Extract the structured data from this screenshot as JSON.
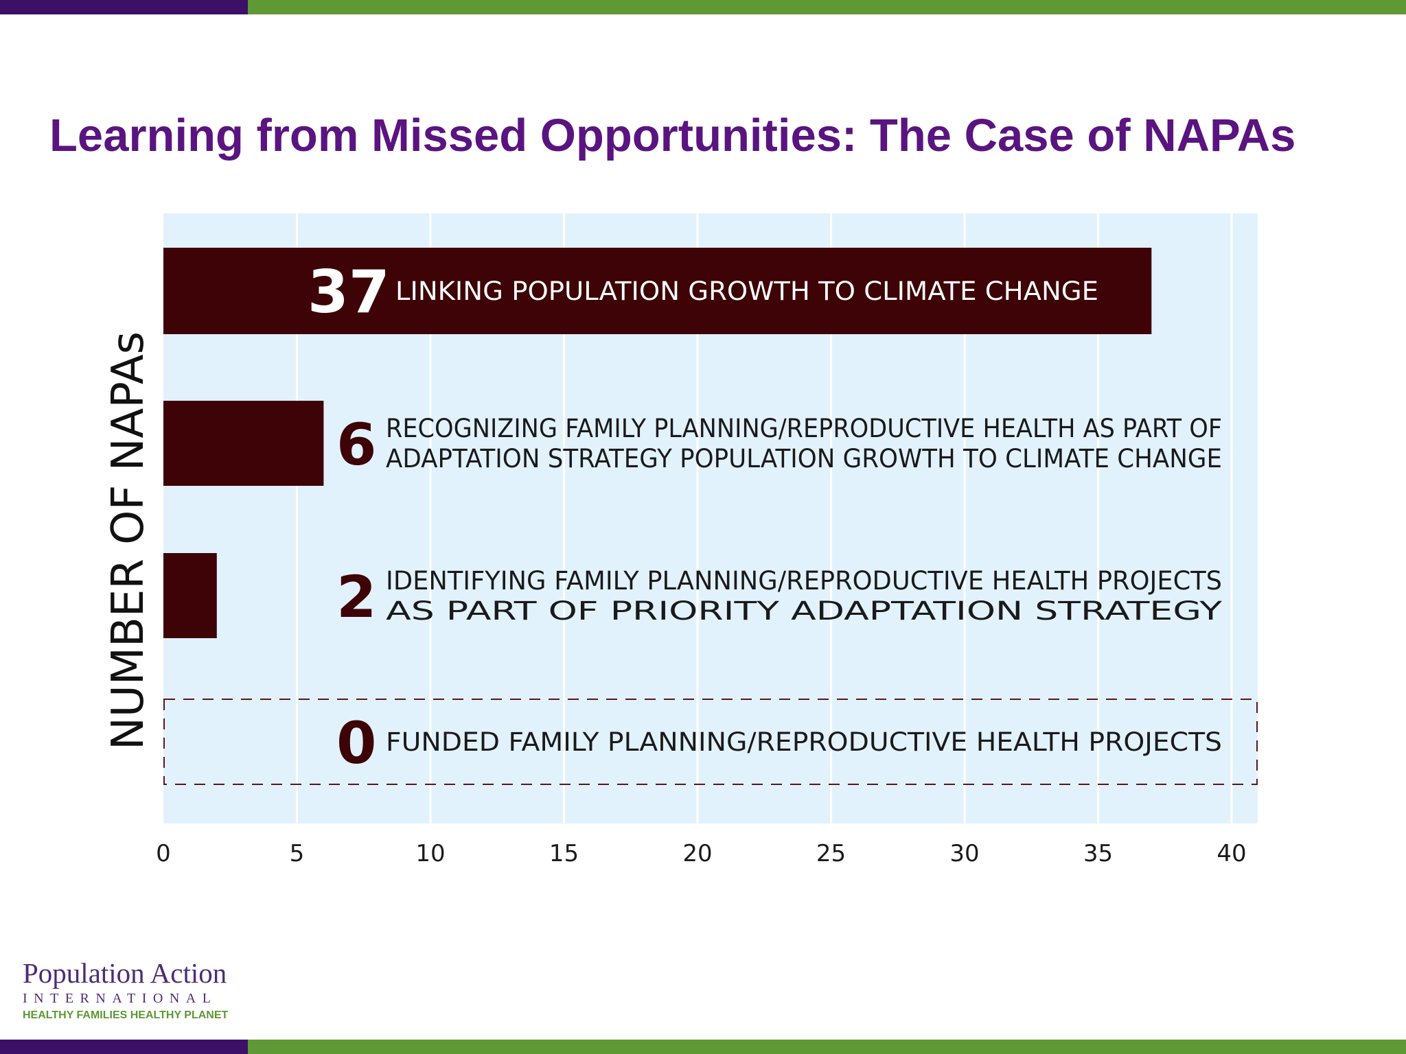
{
  "slide": {
    "title": "Learning from Missed Opportunities: The Case of NAPAs"
  },
  "colors": {
    "purple": "#3d1067",
    "green": "#5f9935",
    "title": "#5a1480",
    "plot_bg": "#e2f2fc",
    "bar": "#3d0306",
    "dash": "#5a1518"
  },
  "logo": {
    "name": "Population Action",
    "subname": "INTERNATIONAL",
    "tagline": "HEALTHY FAMILIES HEALTHY PLANET"
  },
  "chart_data": {
    "type": "bar",
    "orientation": "horizontal",
    "ylabel": "NUMBER OF NAPAs",
    "xlim": [
      0,
      41
    ],
    "xticks": [
      0,
      5,
      10,
      15,
      20,
      25,
      30,
      35,
      40
    ],
    "grid": true,
    "categories": [
      {
        "value": 37,
        "label_lines": [
          "LINKING POPULATION GROWTH TO CLIMATE CHANGE"
        ]
      },
      {
        "value": 6,
        "label_lines": [
          "RECOGNIZING FAMILY PLANNING/REPRODUCTIVE HEALTH AS PART OF",
          "ADAPTATION STRATEGY POPULATION GROWTH TO CLIMATE CHANGE"
        ]
      },
      {
        "value": 2,
        "label_lines": [
          "IDENTIFYING FAMILY PLANNING/REPRODUCTIVE HEALTH PROJECTS",
          "AS PART OF PRIORITY ADAPTATION STRATEGY"
        ]
      },
      {
        "value": 0,
        "label_lines": [
          "FUNDED FAMILY PLANNING/REPRODUCTIVE HEALTH PROJECTS"
        ]
      }
    ]
  }
}
